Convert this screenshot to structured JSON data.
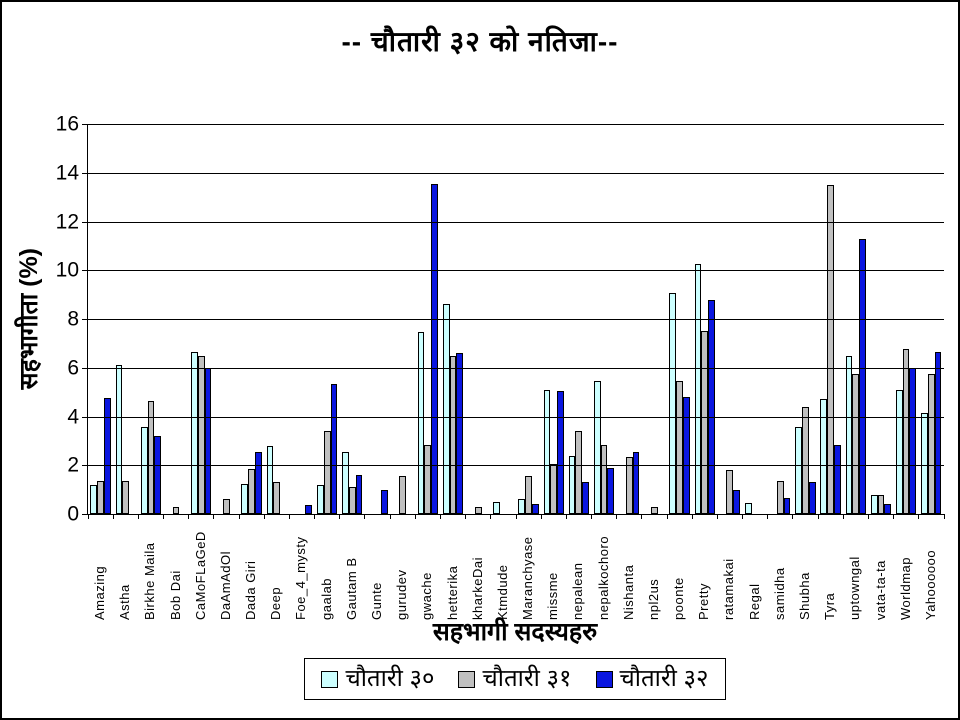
{
  "window": {
    "background_color": "#ffffff",
    "border_color": "#000000"
  },
  "chart_data": {
    "type": "bar",
    "title": "-- चौतारी  ३२  को  नतिजा--",
    "xlabel": "सहभागी सदस्यहरु",
    "ylabel": "सहभागीता  (%)",
    "ylim": [
      0,
      16
    ],
    "ytick_step": 2,
    "yticks": [
      0,
      2,
      4,
      6,
      8,
      10,
      12,
      14,
      16
    ],
    "grid": true,
    "legend_position": "bottom",
    "categories": [
      "Amazing",
      "Astha",
      "Birkhe Maila",
      "Bob Dai",
      "CaMoFLaGeD",
      "DaAmAdOl",
      "Dada Giri",
      "Deep",
      "Foe_4_mysty",
      "gaalab",
      "Gautam B",
      "Gunte",
      "gurudev",
      "gwache",
      "hetterika",
      "kharkeDai",
      "Ktmdude",
      "Maranchyase",
      "missme",
      "nepalean",
      "nepalkochoro",
      "Nishanta",
      "npl2us",
      "poonte",
      "Pretty",
      "ratamakai",
      "Regal",
      "samidha",
      "Shubha",
      "Tyra",
      "uptowngal",
      "vata-ta-ta",
      "Worldmap",
      "Yahoooooo"
    ],
    "series": [
      {
        "name": "चौतारी ३०",
        "color": "#CCFFFF",
        "values": [
          1.2,
          6.1,
          3.55,
          0,
          6.65,
          0,
          1.25,
          2.8,
          0,
          1.2,
          2.55,
          0,
          0,
          7.45,
          8.6,
          0,
          0.5,
          0.6,
          5.1,
          2.4,
          5.45,
          0,
          0,
          9.05,
          10.25,
          0,
          0.45,
          0,
          3.55,
          4.7,
          6.5,
          0.8,
          5.1,
          4.15
        ]
      },
      {
        "name": "चौतारी ३१",
        "color": "#C0C0C0",
        "values": [
          1.35,
          1.35,
          4.65,
          0.3,
          6.5,
          0.6,
          1.85,
          1.3,
          0,
          3.4,
          1.1,
          0,
          1.55,
          2.85,
          6.5,
          0.3,
          0,
          1.55,
          2.05,
          3.4,
          2.85,
          2.35,
          0.3,
          5.45,
          7.5,
          1.8,
          0,
          1.35,
          4.4,
          13.5,
          5.75,
          0.8,
          6.75,
          5.75
        ]
      },
      {
        "name": "चौतारी ३२",
        "color": "#0A16E0",
        "values": [
          4.75,
          0,
          3.2,
          0,
          6.0,
          0,
          2.55,
          0,
          0.35,
          5.35,
          1.6,
          1.0,
          0,
          13.55,
          6.6,
          0,
          0,
          0.4,
          5.05,
          1.3,
          1.9,
          2.55,
          0,
          4.8,
          8.8,
          1.0,
          0,
          0.65,
          1.3,
          2.85,
          11.3,
          0.4,
          6.0,
          6.65
        ]
      }
    ]
  }
}
